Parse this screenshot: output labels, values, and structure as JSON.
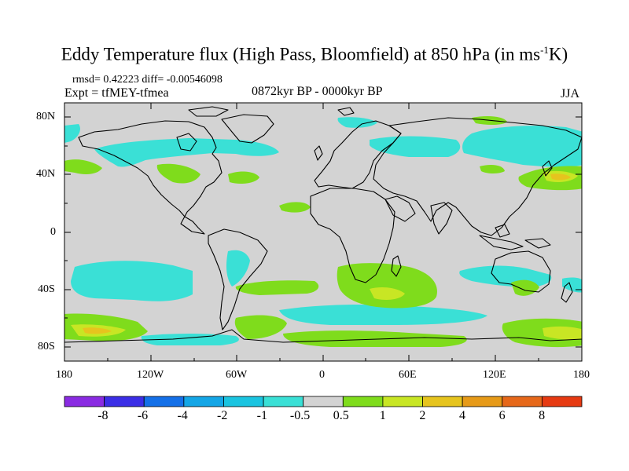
{
  "title": {
    "main": "Eddy Temperature flux (High Pass, Bloomfield) at 850 hPa (in ms",
    "sup": "-1",
    "end": "K)"
  },
  "stats": "rmsd= 0.42223 diff= -0.00546098",
  "experiment": "Expt = tfMEY-tfmea",
  "period": "0872kyr BP - 0000kyr BP",
  "season": "JJA",
  "lat_labels": [
    "80N",
    "40N",
    "0",
    "40S",
    "80S"
  ],
  "lon_labels": [
    "180",
    "120W",
    "60W",
    "0",
    "60E",
    "120E",
    "180"
  ],
  "colorbar": {
    "colors": [
      "#8a2be2",
      "#3b2ee6",
      "#1470e8",
      "#14a6e6",
      "#1bc4e0",
      "#3ae0d6",
      "#d3d3d3",
      "#7fdc1c",
      "#c8e624",
      "#e6c41e",
      "#e69a18",
      "#e6681a",
      "#e63a12"
    ],
    "labels": [
      "-8",
      "-6",
      "-4",
      "-2",
      "-1",
      "-0.5",
      "0.5",
      "1",
      "2",
      "4",
      "6",
      "8"
    ]
  },
  "map": {
    "background": "#d3d3d3",
    "colors": {
      "cyan": "#3ae0d6",
      "green": "#7fdc1c",
      "yellowgreen": "#c8e624",
      "yellow": "#e6c41e"
    }
  }
}
